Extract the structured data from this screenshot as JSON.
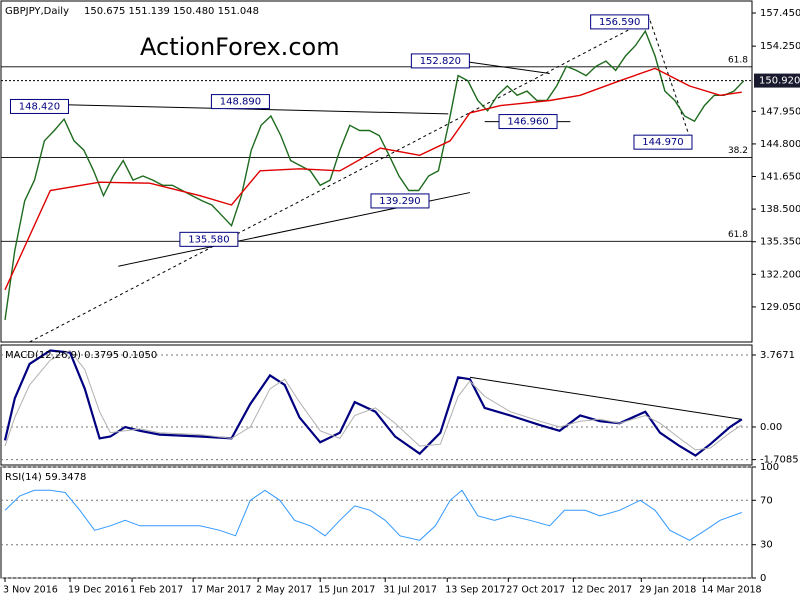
{
  "chart_data": [
    {
      "type": "line",
      "title": "GBPJPY,Daily",
      "subtitle": "150.675 151.139 150.480 151.048",
      "watermark": "ActionForex.com",
      "ylim": [
        125.66,
        158.61
      ],
      "yticks": [
        {
          "value": 157.45,
          "label": "157.450"
        },
        {
          "value": 154.25,
          "label": "154.250"
        },
        {
          "value": 147.95,
          "label": "147.950"
        },
        {
          "value": 144.8,
          "label": "144.800"
        },
        {
          "value": 141.65,
          "label": "141.650"
        },
        {
          "value": 138.5,
          "label": "138.500"
        },
        {
          "value": 135.35,
          "label": "135.350"
        },
        {
          "value": 132.2,
          "label": "132.200"
        },
        {
          "value": 129.05,
          "label": "129.050"
        }
      ],
      "grid": false,
      "series": [
        {
          "color": "#1e6b1e",
          "values": [
            127.8,
            134.5,
            139.3,
            141.3,
            145.1,
            146.1,
            147.2,
            145.1,
            144.2,
            142.2,
            139.8,
            141.7,
            143.2,
            141.3,
            141.7,
            141.3,
            140.8,
            140.8,
            140.3,
            139.8,
            139.3,
            138.9,
            137.9,
            136.9,
            139.8,
            144.2,
            146.6,
            147.5,
            145.6,
            143.2,
            142.7,
            142.2,
            140.8,
            141.3,
            144.2,
            146.6,
            146.1,
            146.1,
            145.6,
            143.7,
            141.7,
            140.3,
            140.3,
            141.7,
            142.2,
            146.6,
            151.4,
            150.9,
            149.0,
            148.0,
            149.5,
            150.4,
            149.5,
            149.9,
            149.0,
            149.0,
            150.4,
            152.3,
            151.9,
            151.4,
            152.3,
            152.8,
            151.9,
            153.3,
            154.3,
            155.7,
            153.3,
            149.9,
            149.0,
            147.5,
            147.0,
            148.5,
            149.5,
            149.5,
            149.9,
            150.9
          ]
        },
        {
          "color": "#e00000",
          "x": [
            0,
            4.6,
            9.6,
            14.7,
            19.8,
            23.0,
            25.9,
            29.9,
            34.0,
            38.1,
            42.1,
            45.2,
            47.2,
            50.3,
            55.3,
            58.4,
            62.4,
            66.0,
            69.5,
            72.6,
            74.8
          ],
          "values": [
            130.7,
            140.3,
            141.1,
            141.0,
            139.8,
            138.9,
            142.2,
            142.4,
            142.2,
            144.4,
            143.7,
            145.1,
            147.8,
            148.5,
            149.0,
            149.5,
            150.9,
            152.1,
            150.4,
            149.5,
            149.8
          ]
        }
      ],
      "trendlines": [
        {
          "x": [
            5.6,
            45.0
          ],
          "values": [
            148.6,
            147.7
          ],
          "style": "solid"
        },
        {
          "x": [
            11.5,
            47.2
          ],
          "values": [
            132.98,
            140.1
          ],
          "style": "solid"
        },
        {
          "x": [
            2.5,
            65.5
          ],
          "values": [
            125.66,
            156.9
          ],
          "style": "dashed"
        },
        {
          "x": [
            46.4,
            55.3
          ],
          "values": [
            152.8,
            151.6
          ],
          "style": "solid"
        },
        {
          "x": [
            48.7,
            57.4
          ],
          "values": [
            146.96,
            146.96
          ],
          "style": "solid"
        },
        {
          "x": [
            65.5,
            69.6
          ],
          "values": [
            156.7,
            145.2
          ],
          "style": "dashed"
        }
      ],
      "annotations": [
        {
          "label": "148.420",
          "value": 148.42,
          "x": 3.5
        },
        {
          "label": "148.890",
          "value": 148.89,
          "x": 23.9
        },
        {
          "label": "135.580",
          "value": 135.58,
          "x": 20.7
        },
        {
          "label": "152.820",
          "value": 152.82,
          "x": 44.2
        },
        {
          "label": "146.960",
          "value": 146.96,
          "x": 53.1
        },
        {
          "label": "139.290",
          "value": 139.29,
          "x": 40.1
        },
        {
          "label": "156.590",
          "value": 156.59,
          "x": 62.4
        },
        {
          "label": "144.970",
          "value": 144.97,
          "x": 66.8
        }
      ],
      "levels": [
        {
          "label": "61.8",
          "value": 152.25
        },
        {
          "label": "38.2",
          "value": 143.48
        },
        {
          "label": "61.8",
          "value": 135.39
        }
      ],
      "last": {
        "value": 150.92,
        "label": "150.920"
      }
    },
    {
      "type": "line",
      "title": "MACD(12,26,9) 0.3795 0.1050",
      "ylim": [
        -1.99,
        4.29
      ],
      "yticks": [
        3.7671,
        {
          "value": 0,
          "label": "0.00"
        },
        -1.7085
      ],
      "grid": true,
      "series": [
        {
          "color": "#000080",
          "width": 2.2,
          "x": [
            0,
            1,
            2.5,
            4.6,
            6.6,
            8.1,
            9.6,
            10.7,
            12.2,
            13.7,
            15.7,
            19.8,
            23,
            24.9,
            26.9,
            28.4,
            29.9,
            32,
            34,
            35.5,
            37.6,
            39.6,
            42.1,
            44.2,
            46,
            47.2,
            48.7,
            51.3,
            54.3,
            56.3,
            58.4,
            60.4,
            62.4,
            65,
            66.5,
            68.5,
            70.1,
            71.6,
            73.6,
            74.8
          ],
          "values": [
            -0.7,
            1.5,
            3.3,
            4.0,
            3.9,
            2.0,
            -0.6,
            -0.5,
            0.0,
            -0.2,
            -0.4,
            -0.5,
            -0.6,
            1.2,
            2.7,
            2.2,
            0.5,
            -0.8,
            -0.3,
            1.3,
            0.8,
            -0.5,
            -1.4,
            -0.3,
            2.6,
            2.5,
            1.0,
            0.6,
            0.1,
            -0.2,
            0.6,
            0.3,
            0.2,
            0.8,
            -0.3,
            -1.0,
            -1.5,
            -0.9,
            0.0,
            0.4
          ]
        },
        {
          "color": "#b0b0b0",
          "width": 1,
          "x": [
            0,
            1,
            2.5,
            4.6,
            6.6,
            8.1,
            9.6,
            10.7,
            12.2,
            13.7,
            15.7,
            19.8,
            23,
            24.9,
            26.9,
            28.4,
            29.9,
            32,
            34,
            35.5,
            37.6,
            39.6,
            42.1,
            44.2,
            46,
            47.2,
            48.7,
            51.3,
            54.3,
            56.3,
            58.4,
            60.4,
            62.4,
            65,
            66.5,
            68.5,
            70.1,
            71.6,
            73.6,
            74.8
          ],
          "values": [
            -1.0,
            0.5,
            2.2,
            3.5,
            4.0,
            3.0,
            0.8,
            -0.3,
            -0.2,
            -0.1,
            -0.3,
            -0.4,
            -0.6,
            0.0,
            2.0,
            2.5,
            1.3,
            -0.2,
            -0.6,
            0.6,
            1.0,
            0.2,
            -1.0,
            -0.9,
            1.6,
            2.4,
            1.6,
            0.8,
            0.3,
            0.0,
            0.3,
            0.4,
            0.2,
            0.6,
            0.2,
            -0.6,
            -1.2,
            -1.1,
            -0.3,
            0.1
          ]
        }
      ],
      "trendlines": [
        {
          "x": [
            47.2,
            74.8
          ],
          "values": [
            2.6,
            0.4
          ],
          "style": "solid"
        }
      ]
    },
    {
      "type": "line",
      "title": "RSI(14) 59.3478",
      "ylim": [
        0,
        100
      ],
      "yticks": [
        0,
        30,
        70,
        100
      ],
      "grid": true,
      "series": [
        {
          "color": "#3399ff",
          "width": 1,
          "x": [
            0,
            1.5,
            3.0,
            4.6,
            6.1,
            7.6,
            9.1,
            10.7,
            12.2,
            13.7,
            15.7,
            17.8,
            19.8,
            21.8,
            23.4,
            24.9,
            26.4,
            27.9,
            29.4,
            31.0,
            32.5,
            34.0,
            35.5,
            37.1,
            38.6,
            40.1,
            42.1,
            43.7,
            45.2,
            46.4,
            48.0,
            49.7,
            51.3,
            53.3,
            55.3,
            56.8,
            58.9,
            60.4,
            62.4,
            64.5,
            66.0,
            67.5,
            69.5,
            71.1,
            72.6,
            74.8
          ],
          "values": [
            61,
            74,
            79,
            79,
            77,
            61,
            43,
            47,
            52,
            47,
            47,
            47,
            47,
            43,
            38,
            70,
            79,
            70,
            52,
            47,
            38,
            52,
            65,
            61,
            52,
            38,
            34,
            47,
            70,
            79,
            56,
            52,
            56,
            52,
            47,
            61,
            61,
            56,
            61,
            70,
            61,
            43,
            34,
            43,
            52,
            59
          ]
        }
      ],
      "xticks": [
        {
          "value": 0,
          "label": "3 Nov 2016"
        },
        {
          "value": 6.6,
          "label": "19 Dec 2016"
        },
        {
          "value": 12.9,
          "label": "1 Feb 2017"
        },
        {
          "value": 19.1,
          "label": "17 Mar 2017"
        },
        {
          "value": 25.7,
          "label": "2 May 2017"
        },
        {
          "value": 32.0,
          "label": "15 Jun 2017"
        },
        {
          "value": 38.6,
          "label": "31 Jul 2017"
        },
        {
          "value": 44.9,
          "label": "13 Sep 2017"
        },
        {
          "value": 51.1,
          "label": "27 Oct 2017"
        },
        {
          "value": 57.7,
          "label": "12 Dec 2017"
        },
        {
          "value": 64.6,
          "label": "29 Jan 2018"
        },
        {
          "value": 70.9,
          "label": "14 Mar 2018"
        }
      ]
    }
  ]
}
